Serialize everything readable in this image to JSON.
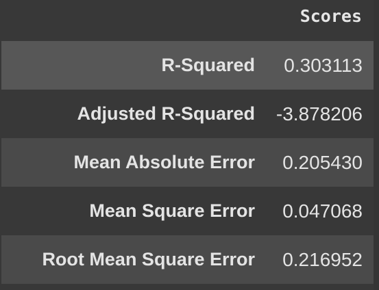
{
  "table": {
    "column_header": "Scores",
    "rows": [
      {
        "metric": "R-Squared",
        "score": "0.303113"
      },
      {
        "metric": "Adjusted R-Squared",
        "score": "-3.878206"
      },
      {
        "metric": "Mean Absolute Error",
        "score": "0.205430"
      },
      {
        "metric": "Mean Square Error",
        "score": "0.047068"
      },
      {
        "metric": "Root Mean Square Error",
        "score": "0.216952"
      }
    ]
  },
  "colors": {
    "background": "#383838",
    "row_striped": "#4a4a4a",
    "row_hover": "#575757",
    "text": "#e4e4e4"
  }
}
